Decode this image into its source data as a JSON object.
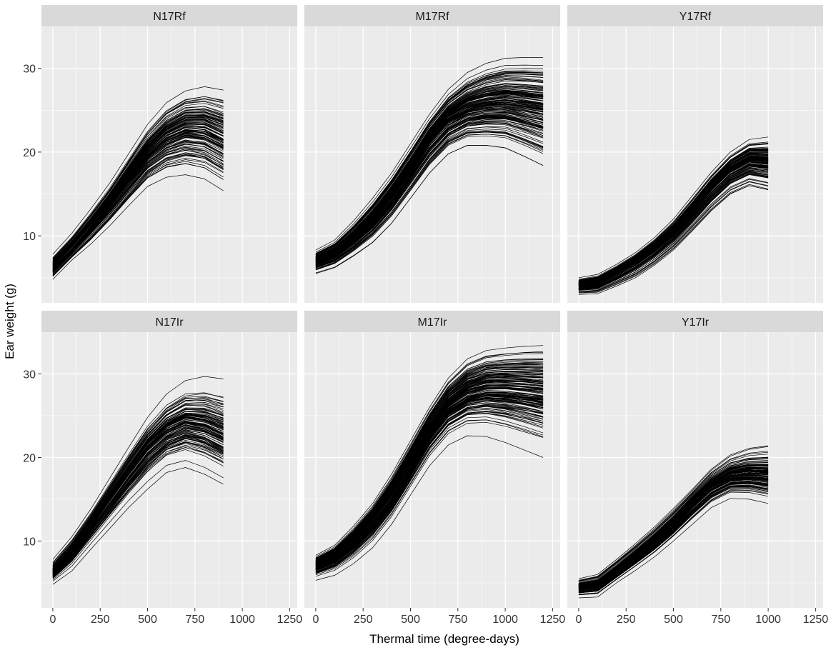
{
  "chart_data": {
    "type": "line",
    "title": "",
    "xlabel": "Thermal time (degree-days)",
    "ylabel": "Ear weight (g)",
    "xlim": [
      -60,
      1290
    ],
    "ylim": [
      2,
      35
    ],
    "x_ticks": [
      0,
      250,
      500,
      750,
      1000,
      1250
    ],
    "y_ticks": [
      10,
      20,
      30
    ],
    "grid": true,
    "legend": "none",
    "line_color": "#000000",
    "panel_background": "#ebebeb",
    "strip_background": "#d9d9d9",
    "panels": [
      {
        "name": "N17Rf",
        "x": [
          0,
          100,
          200,
          300,
          400,
          500,
          600,
          700,
          800,
          900
        ],
        "n_lines": 120,
        "upper": [
          7.8,
          10.3,
          13.2,
          16.3,
          19.8,
          23.3,
          25.9,
          27.3,
          27.8,
          27.4
        ],
        "center": [
          6.2,
          8.4,
          11.0,
          13.8,
          16.9,
          19.8,
          21.8,
          22.8,
          22.6,
          21.5
        ],
        "lower": [
          4.8,
          7.1,
          9.0,
          11.2,
          13.6,
          15.9,
          17.0,
          17.3,
          16.8,
          15.4
        ]
      },
      {
        "name": "M17Rf",
        "x": [
          0,
          100,
          200,
          300,
          400,
          500,
          600,
          700,
          800,
          900,
          1000,
          1100,
          1200
        ],
        "n_lines": 150,
        "upper": [
          8.3,
          9.5,
          11.8,
          14.5,
          17.5,
          21.0,
          24.5,
          27.5,
          29.5,
          30.6,
          31.2,
          31.3,
          31.3
        ],
        "center": [
          7.0,
          8.0,
          9.8,
          12.0,
          14.8,
          18.0,
          21.5,
          24.0,
          25.3,
          25.8,
          26.0,
          25.7,
          25.3
        ],
        "lower": [
          5.5,
          6.2,
          7.6,
          9.2,
          11.5,
          14.5,
          17.5,
          19.8,
          20.8,
          20.8,
          20.5,
          19.5,
          18.4
        ]
      },
      {
        "name": "Y17Rf",
        "x": [
          0,
          100,
          200,
          300,
          400,
          500,
          600,
          700,
          800,
          900,
          1000
        ],
        "n_lines": 120,
        "upper": [
          5.0,
          5.4,
          6.6,
          8.0,
          9.8,
          12.0,
          14.8,
          17.6,
          20.0,
          21.5,
          21.8
        ],
        "center": [
          4.2,
          4.5,
          5.7,
          7.0,
          8.6,
          10.6,
          13.1,
          15.8,
          18.0,
          19.2,
          19.0
        ],
        "lower": [
          3.0,
          3.1,
          4.0,
          5.0,
          6.5,
          8.3,
          10.6,
          13.0,
          15.0,
          16.0,
          15.5
        ]
      },
      {
        "name": "N17Ir",
        "x": [
          0,
          100,
          200,
          300,
          400,
          500,
          600,
          700,
          800,
          900
        ],
        "n_lines": 120,
        "upper": [
          7.8,
          10.5,
          13.8,
          17.5,
          21.2,
          24.8,
          27.6,
          29.2,
          29.7,
          29.4
        ],
        "center": [
          6.3,
          8.8,
          11.8,
          15.0,
          18.2,
          21.2,
          23.2,
          24.2,
          23.8,
          22.8
        ],
        "lower": [
          4.8,
          6.4,
          9.0,
          11.5,
          14.0,
          16.2,
          18.2,
          18.8,
          18.0,
          16.8
        ]
      },
      {
        "name": "M17Ir",
        "x": [
          0,
          100,
          200,
          300,
          400,
          500,
          600,
          700,
          800,
          900,
          1000,
          1100,
          1200
        ],
        "n_lines": 150,
        "upper": [
          8.3,
          9.5,
          11.8,
          14.5,
          18.0,
          22.0,
          26.0,
          29.5,
          31.8,
          32.8,
          33.1,
          33.3,
          33.4
        ],
        "center": [
          7.0,
          8.0,
          9.8,
          12.2,
          15.2,
          19.0,
          23.0,
          26.0,
          27.5,
          28.0,
          28.0,
          27.8,
          27.5
        ],
        "lower": [
          5.3,
          5.9,
          7.3,
          9.2,
          12.0,
          15.5,
          19.0,
          21.5,
          22.6,
          22.5,
          21.8,
          20.9,
          20.0
        ]
      },
      {
        "name": "Y17Ir",
        "x": [
          0,
          100,
          200,
          300,
          400,
          500,
          600,
          700,
          800,
          900,
          1000
        ],
        "n_lines": 120,
        "upper": [
          5.5,
          6.0,
          7.8,
          9.7,
          11.7,
          13.9,
          16.2,
          18.6,
          20.3,
          21.1,
          21.4
        ],
        "center": [
          4.5,
          4.8,
          6.4,
          8.2,
          10.0,
          12.0,
          14.5,
          16.6,
          17.8,
          18.0,
          17.8
        ],
        "lower": [
          3.2,
          3.3,
          5.0,
          6.5,
          8.1,
          10.0,
          12.0,
          14.0,
          15.1,
          15.0,
          14.5
        ]
      }
    ]
  }
}
